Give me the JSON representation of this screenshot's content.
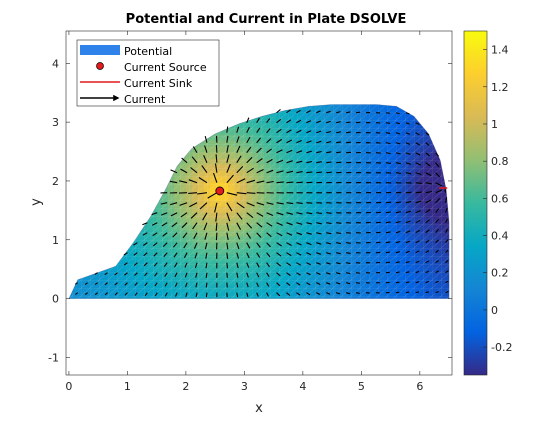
{
  "chart_data": {
    "type": "heatmap",
    "title": "Potential and Current in Plate DSOLVE",
    "xlabel": "x",
    "ylabel": "y",
    "xlim": [
      -0.05,
      6.55
    ],
    "ylim": [
      -1.3,
      4.55
    ],
    "xticks": [
      0,
      1,
      2,
      3,
      4,
      5,
      6
    ],
    "yticks": [
      -1,
      0,
      1,
      2,
      3,
      4
    ],
    "legend": {
      "placement": "top-left",
      "entries": [
        "Potential",
        "Current Source",
        "Current Sink",
        "Current"
      ]
    },
    "colorbar": {
      "colormap": "parula",
      "range": [
        -0.35,
        1.5
      ],
      "ticks": [
        -0.2,
        0,
        0.2,
        0.4,
        0.6,
        0.8,
        1,
        1.2,
        1.4
      ]
    },
    "plate_outline": {
      "x": [
        0,
        0.15,
        0.8,
        1.1,
        1.4,
        1.65,
        1.85,
        2.1,
        2.5,
        2.9,
        3.3,
        3.7,
        4.1,
        4.5,
        4.9,
        5.25,
        5.6,
        5.9,
        6.15,
        6.35,
        6.45,
        6.5,
        6.5,
        0
      ],
      "y": [
        0,
        0.32,
        0.55,
        0.95,
        1.4,
        1.85,
        2.25,
        2.55,
        2.8,
        2.97,
        3.1,
        3.2,
        3.27,
        3.3,
        3.3,
        3.3,
        3.27,
        3.1,
        2.8,
        2.35,
        1.85,
        1.3,
        0,
        0
      ]
    },
    "current_source": {
      "x": 2.58,
      "y": 1.83
    },
    "current_sink": {
      "x": 6.4,
      "y": 1.88
    },
    "potential_source_peak": 1.5,
    "potential_sink_low": -0.3
  }
}
